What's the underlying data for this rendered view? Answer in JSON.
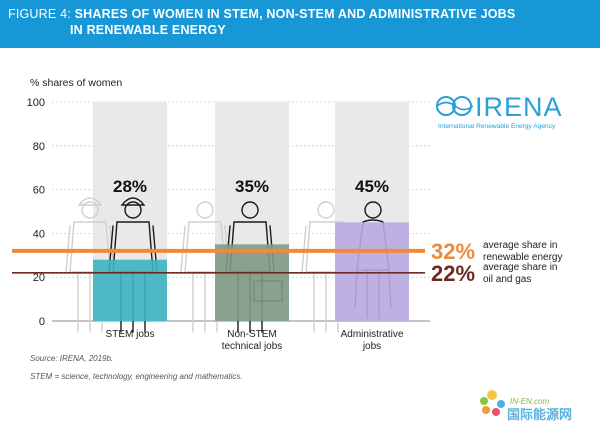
{
  "header": {
    "figure_label": "FIGURE 4:",
    "title_line1": "SHARES OF WOMEN IN STEM, NON-STEM AND ADMINISTRATIVE JOBS",
    "title_line2": "IN RENEWABLE ENERGY"
  },
  "logo": {
    "name": "IRENA",
    "subtitle": "International Renewable Energy Agency"
  },
  "footnotes": {
    "source": "Source: IRENA, 2019b.",
    "stem_definition": "STEM = science, technology, engineering and mathematics."
  },
  "watermark": {
    "domain": "IN-EN.com",
    "chinese": "国际能源网"
  },
  "colors": {
    "header_bg": "#1797d5",
    "stem_bar": "#3db4c0",
    "nonstem_bar": "#7e9a86",
    "admin_bar": "#b9abe0",
    "column_bg": "#e9e9e9",
    "renewable_line": "#f08a3a",
    "oil_gas_line": "#6e2a22"
  },
  "chart_data": {
    "type": "bar",
    "ylabel": "% shares of women",
    "ylim": [
      0,
      100
    ],
    "yticks": [
      0,
      20,
      40,
      60,
      80,
      100
    ],
    "categories": [
      "STEM jobs",
      "Non-STEM technical jobs",
      "Administrative jobs"
    ],
    "category_labels": [
      [
        "STEM jobs"
      ],
      [
        "Non-STEM",
        "technical jobs"
      ],
      [
        "Administrative",
        "jobs"
      ]
    ],
    "values": [
      28,
      35,
      45
    ],
    "value_labels": [
      "28%",
      "35%",
      "45%"
    ],
    "reference_lines": [
      {
        "value": 32,
        "value_label": "32%",
        "label_lines": [
          "average share in",
          "renewable energy"
        ]
      },
      {
        "value": 22,
        "value_label": "22%",
        "label_lines": [
          "average share in",
          "oil and gas"
        ]
      }
    ]
  }
}
